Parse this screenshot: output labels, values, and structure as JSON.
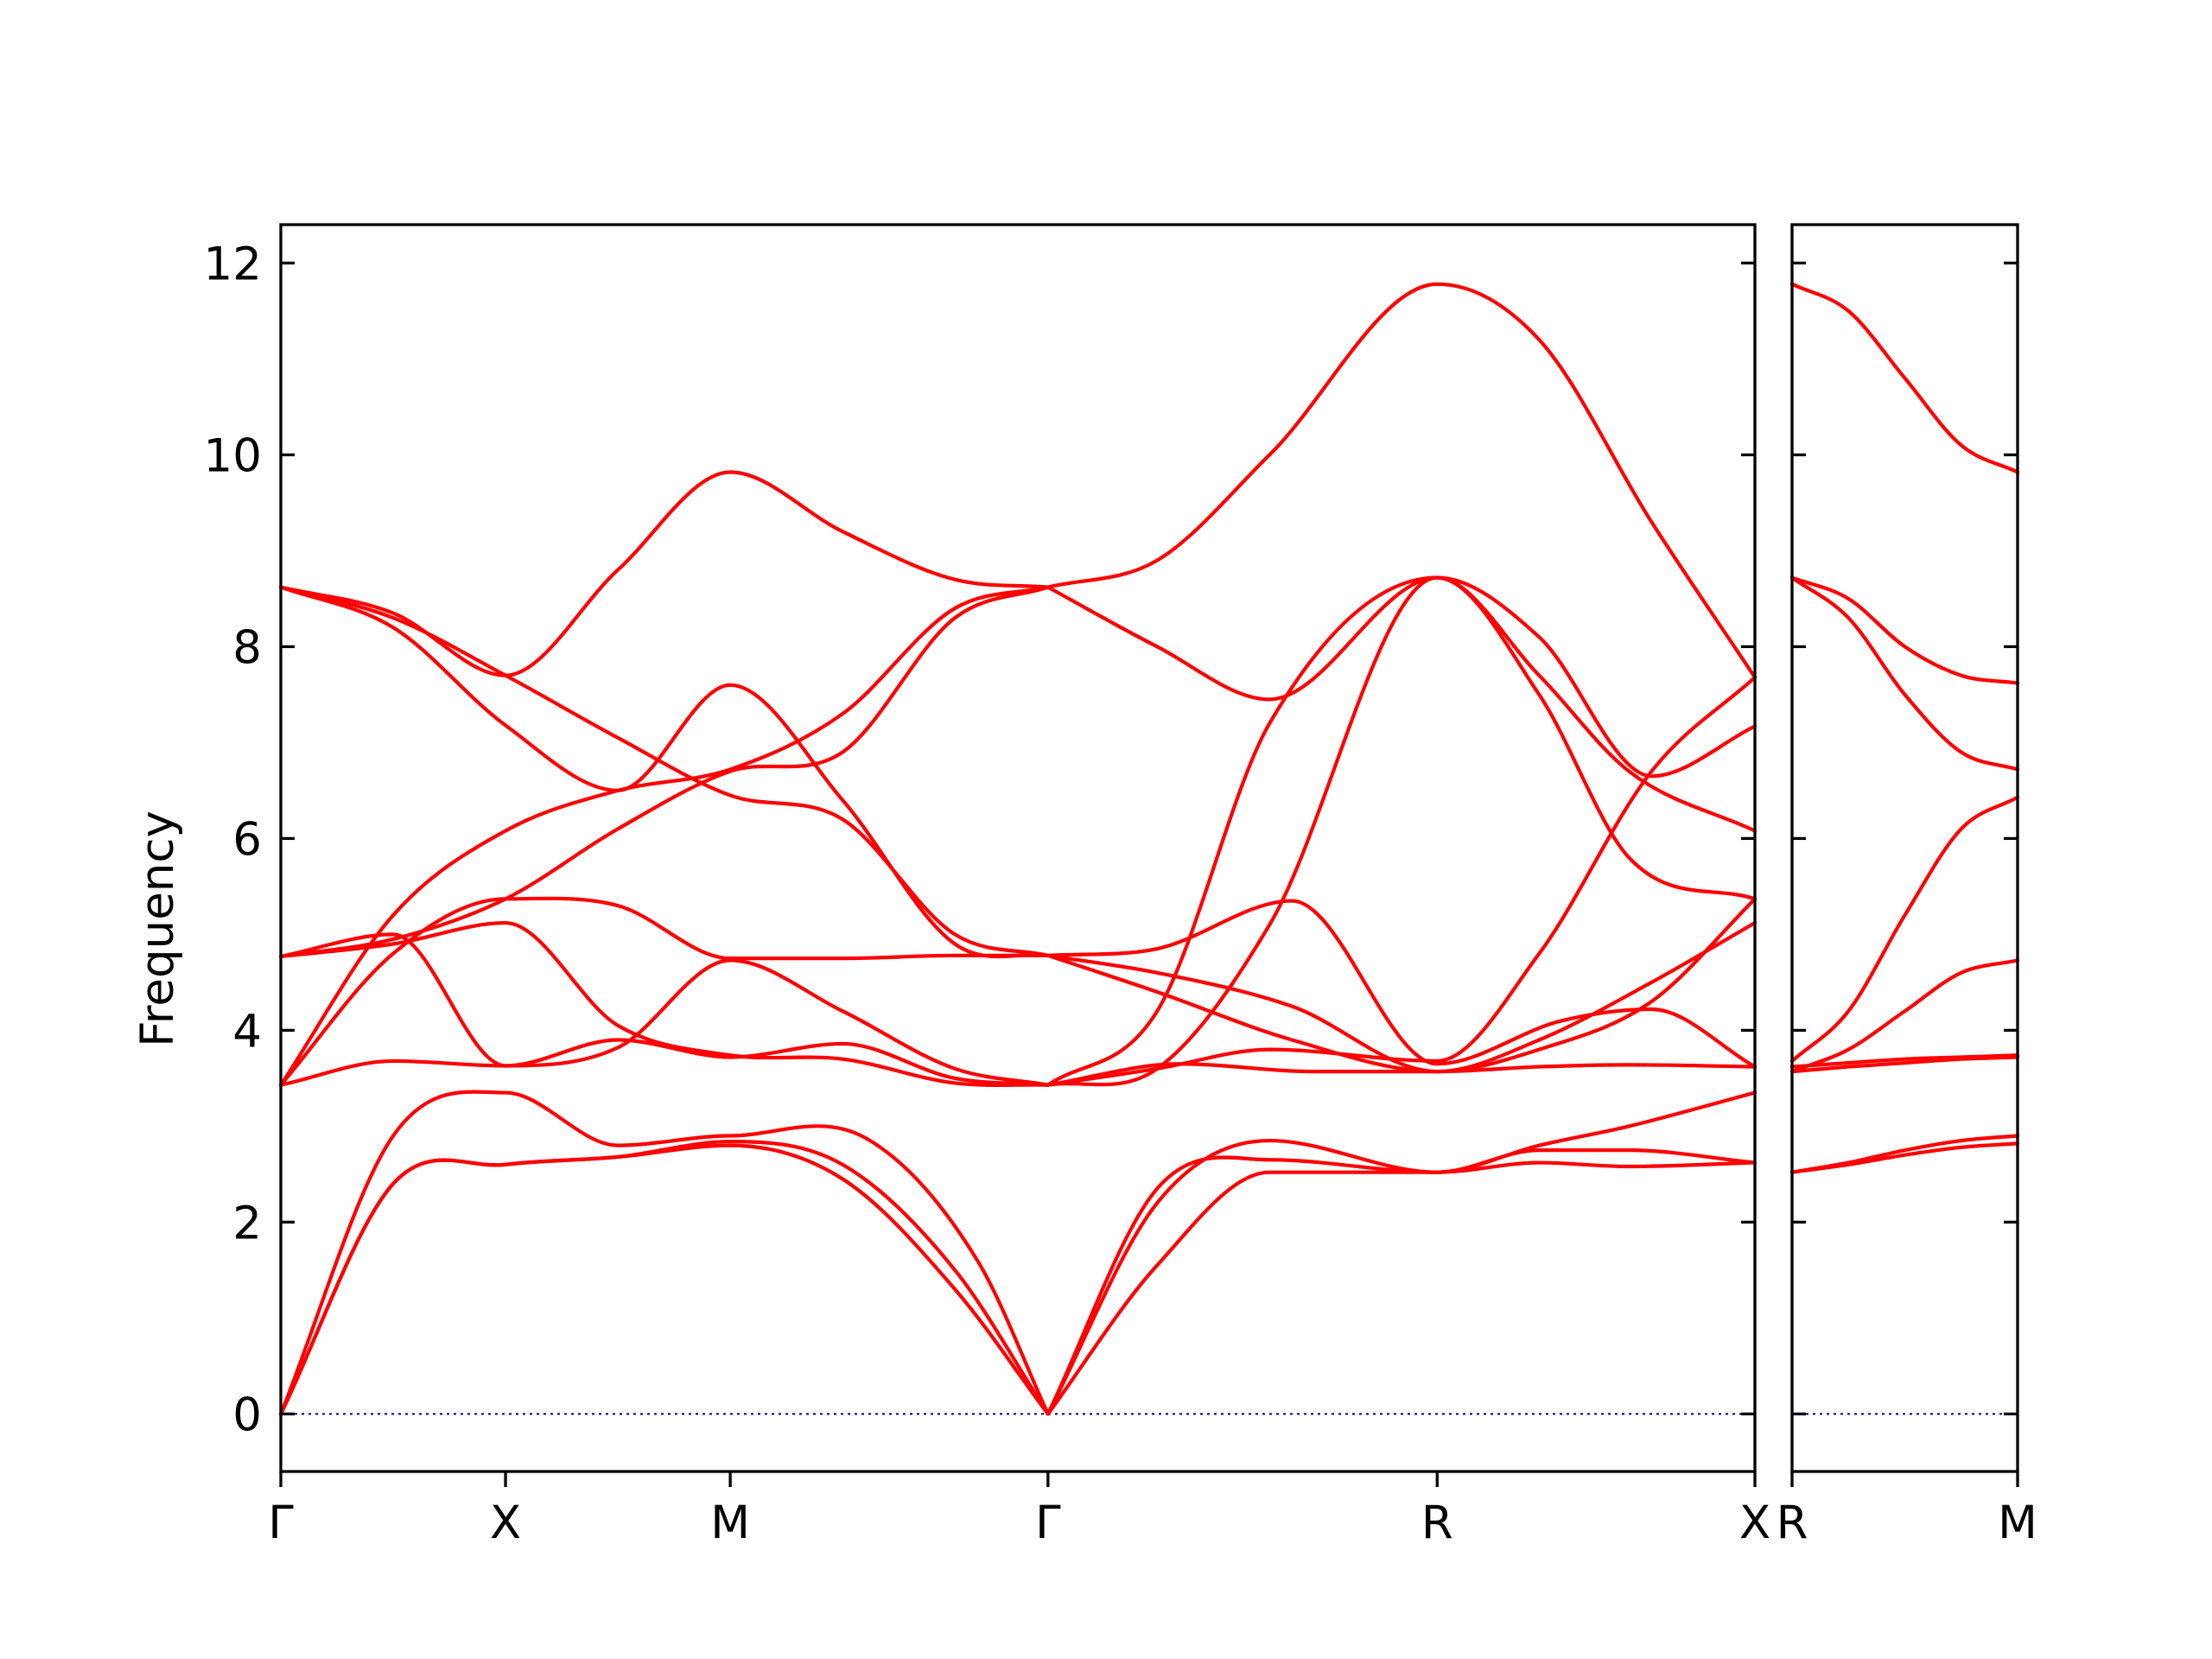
{
  "chart_data": {
    "type": "line",
    "ylabel": "Frequency",
    "ylim": [
      -0.6,
      12.4
    ],
    "yticks": [
      0,
      2,
      4,
      6,
      8,
      10,
      12
    ],
    "band_color": "#ff0000",
    "zero_line_color": "#00008b",
    "panels": [
      {
        "name": "main",
        "path_points": [
          {
            "label": "Γ",
            "x": 0
          },
          {
            "label": "X",
            "x": 1
          },
          {
            "label": "M",
            "x": 2
          },
          {
            "label": "Γ",
            "x": 3.414
          },
          {
            "label": "R",
            "x": 5.146
          },
          {
            "label": "X",
            "x": 6.56
          }
        ],
        "bands": [
          {
            "x": [
              0,
              0.5,
              1,
              1.5,
              2,
              2.5,
              3,
              3.414
            ],
            "y": [
              0,
              2.4,
              2.6,
              2.68,
              2.8,
              2.45,
              1.3,
              0
            ]
          },
          {
            "x": [
              0,
              0.5,
              1,
              1.5,
              2,
              2.5,
              3,
              3.414
            ],
            "y": [
              0,
              2.4,
              2.6,
              2.68,
              2.84,
              2.6,
              1.5,
              0
            ]
          },
          {
            "x": [
              0,
              0.5,
              1,
              1.5,
              2,
              2.6,
              3.1,
              3.414
            ],
            "y": [
              0,
              2.9,
              3.35,
              2.8,
              2.9,
              2.88,
              1.6,
              0
            ]
          },
          {
            "x": [
              0,
              0.5,
              1,
              1.5,
              2,
              2.5,
              3,
              3.414
            ],
            "y": [
              3.43,
              3.68,
              3.63,
              3.9,
              3.72,
              3.86,
              3.5,
              3.43
            ]
          },
          {
            "x": [
              0,
              0.5,
              1,
              1.5,
              2,
              2.5,
              3,
              3.414
            ],
            "y": [
              3.43,
              5.2,
              6.08,
              6.5,
              6.72,
              7.3,
              8.4,
              8.62
            ]
          },
          {
            "x": [
              0,
              0.5,
              1,
              1.5,
              2,
              2.5,
              3,
              3.414
            ],
            "y": [
              3.43,
              4.8,
              5.37,
              5.3,
              4.75,
              4.75,
              4.78,
              4.78
            ]
          },
          {
            "x": [
              0,
              0.5,
              1,
              1.5,
              2,
              2.5,
              3,
              3.414
            ],
            "y": [
              4.77,
              4.9,
              5.12,
              4.05,
              3.74,
              3.7,
              3.45,
              3.43
            ]
          },
          {
            "x": [
              0,
              0.5,
              1,
              1.5,
              2,
              2.5,
              3,
              3.414
            ],
            "y": [
              4.77,
              4.95,
              5.37,
              6.1,
              6.7,
              6.9,
              8.3,
              8.62
            ]
          },
          {
            "x": [
              0,
              0.5,
              1,
              1.5,
              2,
              2.5,
              3,
              3.414
            ],
            "y": [
              4.77,
              5.0,
              3.63,
              3.82,
              4.73,
              4.2,
              3.6,
              3.43
            ]
          },
          {
            "x": [
              0,
              0.5,
              1,
              1.5,
              2,
              2.5,
              3,
              3.414
            ],
            "y": [
              8.62,
              8.3,
              7.7,
              7.05,
              6.45,
              6.2,
              5.0,
              4.78
            ]
          },
          {
            "x": [
              0,
              0.5,
              1,
              1.5,
              2,
              2.5,
              3,
              3.414
            ],
            "y": [
              8.62,
              8.2,
              7.18,
              6.5,
              7.6,
              6.4,
              4.9,
              4.78
            ]
          },
          {
            "x": [
              0,
              0.5,
              1,
              1.5,
              2,
              2.5,
              3,
              3.414
            ],
            "y": [
              8.62,
              8.35,
              7.7,
              8.8,
              9.82,
              9.2,
              8.7,
              8.62
            ]
          },
          {
            "x": [
              3.414,
              3.9,
              4.4,
              5.146,
              5.6,
              6.0,
              6.56
            ],
            "y": [
              0,
              1.55,
              2.52,
              2.52,
              2.62,
              2.58,
              2.62
            ]
          },
          {
            "x": [
              3.414,
              3.9,
              4.4,
              5.146,
              5.6,
              6.0,
              6.56
            ],
            "y": [
              0,
              2.2,
              2.85,
              2.52,
              2.75,
              2.75,
              2.62
            ]
          },
          {
            "x": [
              3.414,
              3.9,
              4.4,
              5.146,
              5.6,
              6.0,
              6.56
            ],
            "y": [
              0,
              2.35,
              2.65,
              2.52,
              2.8,
              3.0,
              3.35
            ]
          },
          {
            "x": [
              3.414,
              4.0,
              4.6,
              5.146,
              5.6,
              6.0,
              6.56
            ],
            "y": [
              3.43,
              3.65,
              3.57,
              3.57,
              3.62,
              3.64,
              3.62
            ]
          },
          {
            "x": [
              3.414,
              3.9,
              4.4,
              5.146,
              5.6,
              6.0,
              6.56
            ],
            "y": [
              3.43,
              4.2,
              7.2,
              8.72,
              7.5,
              5.8,
              5.37
            ]
          },
          {
            "x": [
              3.414,
              3.9,
              4.4,
              5.146,
              5.6,
              6.0,
              6.56
            ],
            "y": [
              3.43,
              3.6,
              5.1,
              8.72,
              7.7,
              6.7,
              6.08
            ]
          },
          {
            "x": [
              3.414,
              3.9,
              4.5,
              5.146,
              5.7,
              6.1,
              6.56
            ],
            "y": [
              4.78,
              4.85,
              5.35,
              3.65,
              4.1,
              4.22,
              3.62
            ]
          },
          {
            "x": [
              3.414,
              3.9,
              4.5,
              5.146,
              5.6,
              6.1,
              6.56
            ],
            "y": [
              4.78,
              4.6,
              4.25,
              3.57,
              3.8,
              4.3,
              5.37
            ]
          },
          {
            "x": [
              3.414,
              3.9,
              4.5,
              5.146,
              5.6,
              6.1,
              6.56
            ],
            "y": [
              4.78,
              4.4,
              3.9,
              3.57,
              3.9,
              4.5,
              5.12
            ]
          },
          {
            "x": [
              3.414,
              3.9,
              4.4,
              5.146,
              5.6,
              6.1,
              6.56
            ],
            "y": [
              8.62,
              8.0,
              7.45,
              8.72,
              8.1,
              6.65,
              7.17
            ]
          },
          {
            "x": [
              3.414,
              3.9,
              4.4,
              5.146,
              5.6,
              6.1,
              6.56
            ],
            "y": [
              3.43,
              3.6,
              3.8,
              3.68,
              4.8,
              6.7,
              7.68
            ]
          },
          {
            "x": [
              3.414,
              3.9,
              4.4,
              5.146,
              5.6,
              6.1,
              6.56
            ],
            "y": [
              8.62,
              8.9,
              10.0,
              11.78,
              11.2,
              9.3,
              7.68
            ]
          }
        ]
      },
      {
        "name": "side",
        "path_points": [
          {
            "label": "R",
            "x": 0
          },
          {
            "label": "M",
            "x": 1
          }
        ],
        "bands": [
          {
            "x": [
              0,
              0.25,
              0.5,
              0.75,
              1
            ],
            "y": [
              2.52,
              2.6,
              2.7,
              2.78,
              2.82
            ]
          },
          {
            "x": [
              0,
              0.25,
              0.5,
              0.75,
              1
            ],
            "y": [
              2.52,
              2.62,
              2.75,
              2.85,
              2.9
            ]
          },
          {
            "x": [
              0,
              0.25,
              0.5,
              0.75,
              1
            ],
            "y": [
              3.57,
              3.62,
              3.66,
              3.7,
              3.72
            ]
          },
          {
            "x": [
              0,
              0.25,
              0.5,
              0.75,
              1
            ],
            "y": [
              3.62,
              3.66,
              3.7,
              3.72,
              3.74
            ]
          },
          {
            "x": [
              0,
              0.25,
              0.5,
              0.75,
              1
            ],
            "y": [
              3.57,
              3.8,
              4.2,
              4.6,
              4.73
            ]
          },
          {
            "x": [
              0,
              0.25,
              0.5,
              0.75,
              1
            ],
            "y": [
              3.68,
              4.2,
              5.2,
              6.1,
              6.43
            ]
          },
          {
            "x": [
              0,
              0.25,
              0.5,
              0.75,
              1
            ],
            "y": [
              8.72,
              8.3,
              7.5,
              6.9,
              6.72
            ]
          },
          {
            "x": [
              0,
              0.25,
              0.5,
              0.75,
              1
            ],
            "y": [
              8.72,
              8.5,
              8.0,
              7.7,
              7.62
            ]
          },
          {
            "x": [
              0,
              0.25,
              0.5,
              0.75,
              1
            ],
            "y": [
              11.78,
              11.5,
              10.8,
              10.1,
              9.82
            ]
          }
        ]
      }
    ]
  }
}
